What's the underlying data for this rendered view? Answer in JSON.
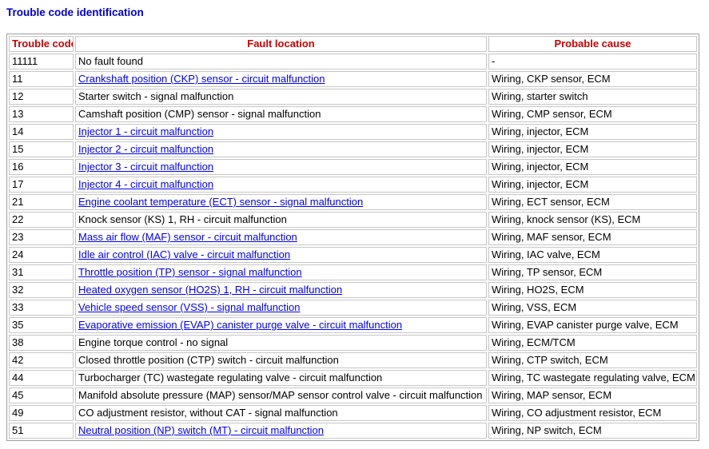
{
  "page": {
    "title": "Trouble code identification"
  },
  "colors": {
    "title_blue": "#0000cc",
    "header_red": "#cc0000",
    "link_blue": "#0000ee",
    "outer_border": "#9e9e9e",
    "cell_border": "#c6c6c6"
  },
  "table": {
    "headers": [
      "Trouble code",
      "Fault location",
      "Probable cause"
    ],
    "rows": [
      {
        "code": "11111",
        "fault": "No fault found",
        "link": false,
        "cause": "-"
      },
      {
        "code": "11",
        "fault": "Crankshaft position (CKP) sensor - circuit malfunction",
        "link": true,
        "cause": "Wiring, CKP sensor, ECM"
      },
      {
        "code": "12",
        "fault": "Starter switch - signal malfunction",
        "link": false,
        "cause": "Wiring, starter switch"
      },
      {
        "code": "13",
        "fault": "Camshaft position (CMP) sensor - signal malfunction",
        "link": false,
        "cause": "Wiring, CMP sensor, ECM"
      },
      {
        "code": "14",
        "fault": "Injector 1 - circuit malfunction",
        "link": true,
        "cause": "Wiring, injector, ECM"
      },
      {
        "code": "15",
        "fault": "Injector 2 - circuit malfunction",
        "link": true,
        "cause": "Wiring, injector, ECM"
      },
      {
        "code": "16",
        "fault": "Injector 3 - circuit malfunction",
        "link": true,
        "cause": "Wiring, injector, ECM"
      },
      {
        "code": "17",
        "fault": "Injector 4 - circuit malfunction",
        "link": true,
        "cause": "Wiring, injector, ECM"
      },
      {
        "code": "21",
        "fault": "Engine coolant temperature (ECT) sensor - signal malfunction",
        "link": true,
        "cause": "Wiring, ECT sensor, ECM"
      },
      {
        "code": "22",
        "fault": "Knock sensor (KS) 1, RH - circuit malfunction",
        "link": false,
        "cause": "Wiring, knock sensor (KS), ECM"
      },
      {
        "code": "23",
        "fault": "Mass air flow (MAF) sensor - circuit malfunction",
        "link": true,
        "cause": "Wiring, MAF sensor, ECM"
      },
      {
        "code": "24",
        "fault": "Idle air control (IAC) valve - circuit malfunction",
        "link": true,
        "cause": "Wiring, IAC valve, ECM"
      },
      {
        "code": "31",
        "fault": "Throttle position (TP) sensor - signal malfunction",
        "link": true,
        "cause": "Wiring, TP sensor, ECM"
      },
      {
        "code": "32",
        "fault": "Heated oxygen sensor (HO2S) 1, RH - circuit malfunction",
        "link": true,
        "cause": "Wiring, HO2S, ECM"
      },
      {
        "code": "33",
        "fault": "Vehicle speed sensor (VSS) - signal malfunction",
        "link": true,
        "cause": "Wiring, VSS, ECM"
      },
      {
        "code": "35",
        "fault": "Evaporative emission (EVAP) canister purge valve - circuit malfunction",
        "link": true,
        "cause": "Wiring, EVAP canister purge valve, ECM"
      },
      {
        "code": "38",
        "fault": "Engine torque control - no signal",
        "link": false,
        "cause": "Wiring, ECM/TCM"
      },
      {
        "code": "42",
        "fault": "Closed throttle position (CTP) switch - circuit malfunction",
        "link": false,
        "cause": "Wiring, CTP switch, ECM"
      },
      {
        "code": "44",
        "fault": "Turbocharger (TC) wastegate regulating valve - circuit malfunction",
        "link": false,
        "cause": "Wiring, TC wastegate regulating valve, ECM"
      },
      {
        "code": "45",
        "fault": "Manifold absolute pressure (MAP) sensor/MAP sensor control valve - circuit malfunction",
        "link": false,
        "cause": "Wiring, MAP sensor, ECM"
      },
      {
        "code": "49",
        "fault": "CO adjustment resistor, without CAT - signal malfunction",
        "link": false,
        "cause": "Wiring, CO adjustment resistor, ECM"
      },
      {
        "code": "51",
        "fault": "Neutral position (NP) switch (MT) - circuit malfunction",
        "link": true,
        "cause": "Wiring, NP switch, ECM"
      }
    ]
  }
}
